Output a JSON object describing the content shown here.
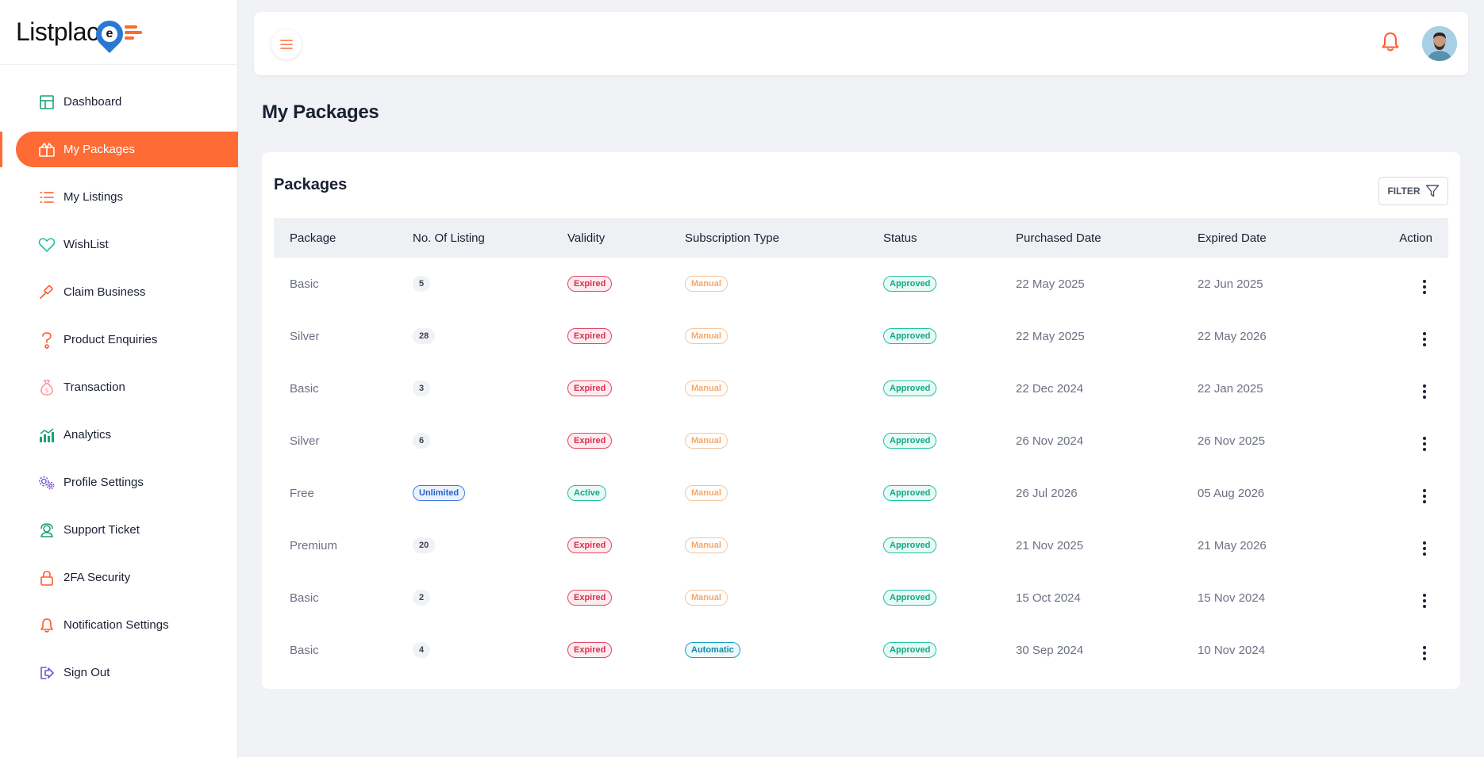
{
  "brand": {
    "name_part": "Listplac",
    "pin_letter": "e"
  },
  "sidebar": {
    "items": [
      {
        "label": "Dashboard",
        "icon": "grid-icon",
        "active": false
      },
      {
        "label": "My Packages",
        "icon": "gift-icon",
        "active": true
      },
      {
        "label": "My Listings",
        "icon": "list-icon",
        "active": false
      },
      {
        "label": "WishList",
        "icon": "heart-icon",
        "active": false
      },
      {
        "label": "Claim Business",
        "icon": "gavel-icon",
        "active": false
      },
      {
        "label": "Product Enquiries",
        "icon": "question-icon",
        "active": false
      },
      {
        "label": "Transaction",
        "icon": "money-bag-icon",
        "active": false
      },
      {
        "label": "Analytics",
        "icon": "chart-icon",
        "active": false
      },
      {
        "label": "Profile Settings",
        "icon": "gears-icon",
        "active": false
      },
      {
        "label": "Support Ticket",
        "icon": "support-icon",
        "active": false
      },
      {
        "label": "2FA Security",
        "icon": "lock-icon",
        "active": false
      },
      {
        "label": "Notification Settings",
        "icon": "bell-icon",
        "active": false
      },
      {
        "label": "Sign Out",
        "icon": "sign-out-icon",
        "active": false
      }
    ]
  },
  "page": {
    "title": "My Packages"
  },
  "card": {
    "title": "Packages",
    "filter_label": "FILTER"
  },
  "table": {
    "headers": [
      "Package",
      "No. Of Listing",
      "Validity",
      "Subscription Type",
      "Status",
      "Purchased Date",
      "Expired Date",
      "Action"
    ],
    "rows": [
      {
        "package": "Basic",
        "listings": "5",
        "validity": "Expired",
        "subscription": "Manual",
        "status": "Approved",
        "purchased": "22 May 2025",
        "expired": "22 Jun 2025"
      },
      {
        "package": "Silver",
        "listings": "28",
        "validity": "Expired",
        "subscription": "Manual",
        "status": "Approved",
        "purchased": "22 May 2025",
        "expired": "22 May 2026"
      },
      {
        "package": "Basic",
        "listings": "3",
        "validity": "Expired",
        "subscription": "Manual",
        "status": "Approved",
        "purchased": "22 Dec 2024",
        "expired": "22 Jan 2025"
      },
      {
        "package": "Silver",
        "listings": "6",
        "validity": "Expired",
        "subscription": "Manual",
        "status": "Approved",
        "purchased": "26 Nov 2024",
        "expired": "26 Nov 2025"
      },
      {
        "package": "Free",
        "listings": "Unlimited",
        "validity": "Active",
        "subscription": "Manual",
        "status": "Approved",
        "purchased": "26 Jul 2026",
        "expired": "05 Aug 2026"
      },
      {
        "package": "Premium",
        "listings": "20",
        "validity": "Expired",
        "subscription": "Manual",
        "status": "Approved",
        "purchased": "21 Nov 2025",
        "expired": "21 May 2026"
      },
      {
        "package": "Basic",
        "listings": "2",
        "validity": "Expired",
        "subscription": "Manual",
        "status": "Approved",
        "purchased": "15 Oct 2024",
        "expired": "15 Nov 2024"
      },
      {
        "package": "Basic",
        "listings": "4",
        "validity": "Expired",
        "subscription": "Automatic",
        "status": "Approved",
        "purchased": "30 Sep 2024",
        "expired": "10 Nov 2024"
      }
    ]
  },
  "colors": {
    "accent": "#ff6b35",
    "approved": "#12a785",
    "expired": "#d8304f",
    "manual": "#f4a868",
    "automatic": "#0f8aa6",
    "unlimited": "#2a63c0"
  }
}
